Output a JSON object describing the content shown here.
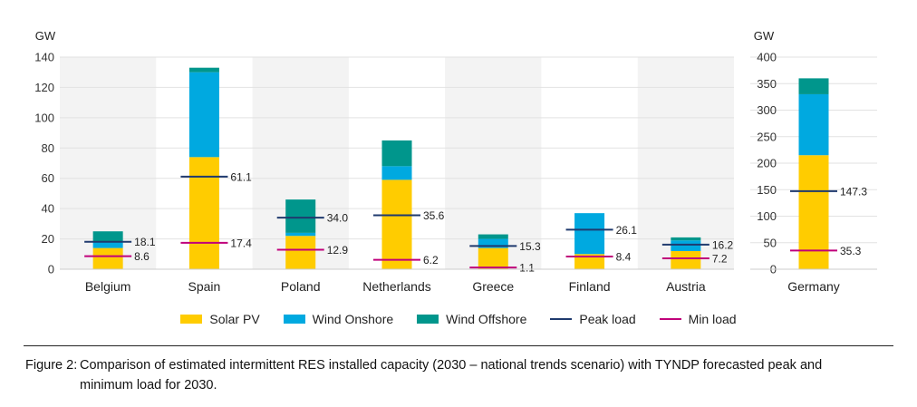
{
  "chart_data": [
    {
      "type": "bar",
      "stacked": true,
      "unit_label": "GW",
      "ylim": [
        0,
        140
      ],
      "yticks": [
        0,
        20,
        40,
        60,
        80,
        100,
        120,
        140
      ],
      "grid": true,
      "categories": [
        "Belgium",
        "Spain",
        "Poland",
        "Netherlands",
        "Greece",
        "Finland",
        "Austria"
      ],
      "series": [
        {
          "name": "Solar PV",
          "values": [
            14,
            74,
            22,
            59,
            14,
            10,
            12
          ]
        },
        {
          "name": "Wind Onshore",
          "values": [
            4,
            56,
            2,
            9,
            6,
            27,
            7
          ]
        },
        {
          "name": "Wind Offshore",
          "values": [
            7,
            3,
            22,
            17,
            3,
            0,
            2
          ]
        }
      ],
      "peak_load": [
        18.1,
        61.1,
        34.0,
        35.6,
        15.3,
        26.1,
        16.2
      ],
      "min_load": [
        8.6,
        17.4,
        12.9,
        6.2,
        1.1,
        8.4,
        7.2
      ],
      "peak_load_labels": [
        "18.1",
        "61.1",
        "34.0",
        "35.6",
        "15.3",
        "26.1",
        "16.2"
      ],
      "min_load_labels": [
        "8.6",
        "17.4",
        "12.9",
        "6.2",
        "1.1",
        "8.4",
        "7.2"
      ]
    },
    {
      "type": "bar",
      "stacked": true,
      "unit_label": "GW",
      "ylim": [
        0,
        400
      ],
      "yticks": [
        0,
        50,
        100,
        150,
        200,
        250,
        300,
        350,
        400
      ],
      "grid": true,
      "categories": [
        "Germany"
      ],
      "series": [
        {
          "name": "Solar PV",
          "values": [
            215
          ]
        },
        {
          "name": "Wind Onshore",
          "values": [
            115
          ]
        },
        {
          "name": "Wind Offshore",
          "values": [
            30
          ]
        }
      ],
      "peak_load": [
        147.3
      ],
      "min_load": [
        35.3
      ],
      "peak_load_labels": [
        "147.3"
      ],
      "min_load_labels": [
        "35.3"
      ]
    }
  ],
  "legend": {
    "items": [
      {
        "label": "Solar PV",
        "kind": "rect",
        "color": "#FFCC00"
      },
      {
        "label": "Wind Onshore",
        "kind": "rect",
        "color": "#00A9E0"
      },
      {
        "label": "Wind Offshore",
        "kind": "rect",
        "color": "#00968C"
      },
      {
        "label": "Peak load",
        "kind": "line",
        "color": "#1F3A6E"
      },
      {
        "label": "Min load",
        "kind": "line",
        "color": "#C0007A"
      }
    ]
  },
  "colors": {
    "solar": "#FFCC00",
    "wind_onshore": "#00A9E0",
    "wind_offshore": "#00968C",
    "peak": "#1F3A6E",
    "min": "#C0007A",
    "band_shade": "#F3F3F3",
    "grid": "#E2E2E2"
  },
  "caption": {
    "prefix": "Figure 2:",
    "text": "Comparison of estimated intermittent RES installed capacity (2030 – national trends scenario) with TYNDP forecasted peak and minimum load for 2030."
  }
}
